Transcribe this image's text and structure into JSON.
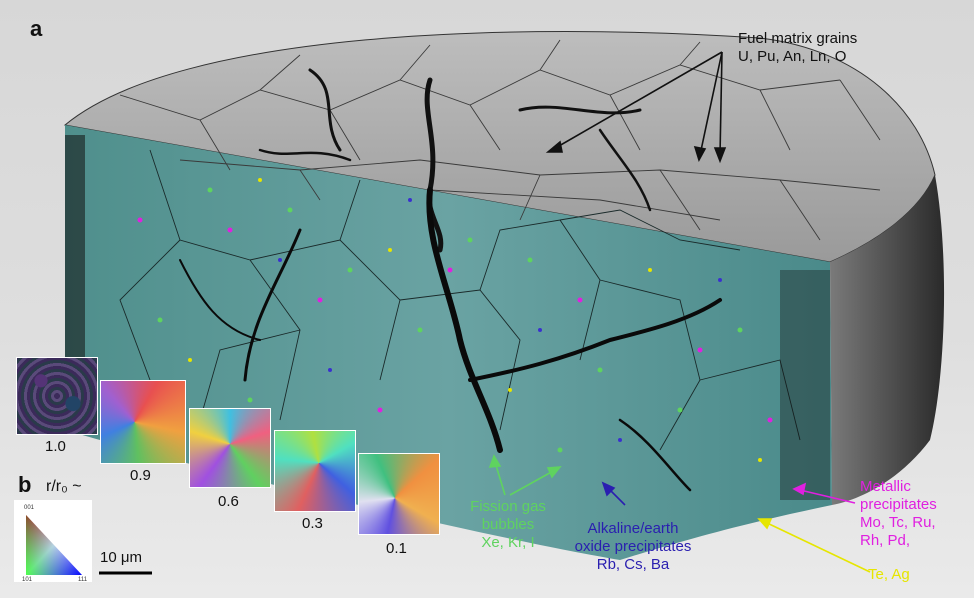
{
  "panel_a_label": "a",
  "panel_b_label": "b",
  "labels": {
    "fuel_matrix": {
      "line1": "Fuel matrix grains",
      "line2": "U, Pu, An, Ln, O",
      "color": "#111111"
    },
    "fission_gas": {
      "line1": "Fission gas",
      "line2": "bubbles",
      "line3": "Xe, Kr, I",
      "color": "#5fd35f"
    },
    "alkaline": {
      "line1": "Alkaline/earth",
      "line2": "oxide precipitates",
      "line3": "Rb, Cs, Ba",
      "color": "#2a1fb0"
    },
    "metallic": {
      "line1": "Metallic",
      "line2": "precipitates",
      "line3": "Mo, Tc, Ru,",
      "line4": "Rh, Pd,",
      "color": "#e020e0"
    },
    "te_ag": {
      "text": "Te, Ag",
      "color": "#e6e600"
    }
  },
  "radius_label": "r/r₀ ~",
  "ebsd_tiles": [
    {
      "value": "1.0"
    },
    {
      "value": "0.9"
    },
    {
      "value": "0.6"
    },
    {
      "value": "0.3"
    },
    {
      "value": "0.1"
    }
  ],
  "ipf_key": {
    "top": "001",
    "left": "101",
    "right": "111"
  },
  "scale_bar": "10 μm"
}
